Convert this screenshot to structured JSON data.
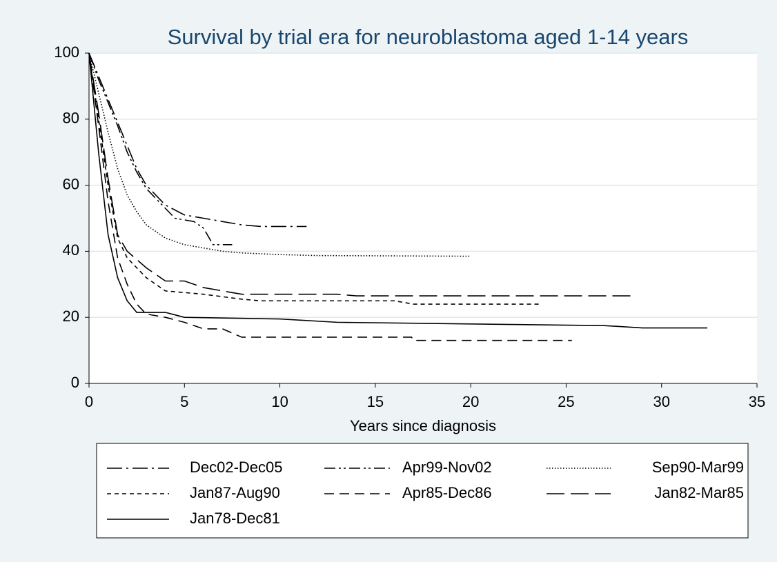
{
  "chart_data": {
    "type": "line",
    "title": "Survival by trial era for neuroblastoma aged 1-14 years",
    "xlabel": "Years since diagnosis",
    "xlim": [
      0,
      35
    ],
    "xticks": [
      0,
      5,
      10,
      15,
      20,
      25,
      30,
      35
    ],
    "ylim": [
      0,
      100
    ],
    "yticks": [
      0,
      20,
      40,
      60,
      80,
      100
    ],
    "grid": true,
    "legend": "bottom",
    "series": [
      {
        "name": "Dec02-Dec05",
        "color": "#000000",
        "style": "dash-dot",
        "x": [
          0,
          0.5,
          1,
          1.5,
          2,
          2.5,
          3,
          3.5,
          4,
          5,
          6,
          7,
          8,
          9,
          11.4
        ],
        "values": [
          100,
          93,
          86,
          79,
          72,
          65,
          60,
          57,
          54,
          51,
          50,
          49,
          48,
          47.5,
          47.5
        ]
      },
      {
        "name": "Apr99-Nov02",
        "color": "#000000",
        "style": "dash-dot-dot",
        "x": [
          0,
          0.5,
          1,
          1.5,
          2,
          2.5,
          3,
          3.5,
          4,
          4.5,
          5.5,
          6,
          6.5,
          7.5
        ],
        "values": [
          100,
          92,
          85,
          78,
          70,
          64,
          59,
          56,
          53,
          50,
          49,
          47,
          42,
          42
        ]
      },
      {
        "name": "Sep90-Mar99",
        "color": "#000000",
        "style": "dot",
        "x": [
          0,
          0.5,
          1,
          1.5,
          2,
          2.5,
          3,
          4,
          5,
          6,
          7,
          8,
          10,
          12,
          20
        ],
        "values": [
          100,
          88,
          76,
          65,
          57,
          52,
          48,
          44,
          42,
          41,
          40,
          39.5,
          39,
          38.7,
          38.5
        ]
      },
      {
        "name": "Jan87-Aug90",
        "color": "#000000",
        "style": "short-dash",
        "x": [
          0,
          0.5,
          1,
          1.5,
          2,
          3,
          4,
          6,
          8,
          9,
          16,
          17,
          23.6
        ],
        "values": [
          100,
          80,
          60,
          44,
          38,
          32,
          28,
          27,
          25.5,
          25,
          25,
          24,
          24
        ]
      },
      {
        "name": "Apr85-Dec86",
        "color": "#000000",
        "style": "dash",
        "x": [
          0,
          0.5,
          1,
          1.5,
          2,
          2.5,
          3,
          4,
          5,
          6,
          7,
          8,
          16.9,
          17,
          25.3
        ],
        "values": [
          100,
          78,
          55,
          38,
          30,
          24,
          21,
          20,
          18.5,
          16.5,
          16.5,
          14,
          14,
          13,
          13
        ]
      },
      {
        "name": "Jan82-Mar85",
        "color": "#000000",
        "style": "long-dash",
        "x": [
          0,
          0.5,
          1,
          1.5,
          2,
          3,
          4,
          5,
          6,
          7,
          8,
          13,
          14,
          28.6
        ],
        "values": [
          100,
          82,
          62,
          45,
          40,
          35,
          31,
          31,
          29,
          28,
          27,
          27,
          26.5,
          26.5
        ]
      },
      {
        "name": "Jan78-Dec81",
        "color": "#000000",
        "style": "solid",
        "x": [
          0,
          0.5,
          1,
          1.5,
          2,
          2.5,
          4,
          5,
          10,
          13,
          20,
          27,
          29,
          32.4
        ],
        "values": [
          100,
          70,
          45,
          32,
          25,
          21.5,
          21.5,
          20,
          19.5,
          18.5,
          18,
          17.5,
          16.8,
          16.8
        ]
      }
    ]
  }
}
